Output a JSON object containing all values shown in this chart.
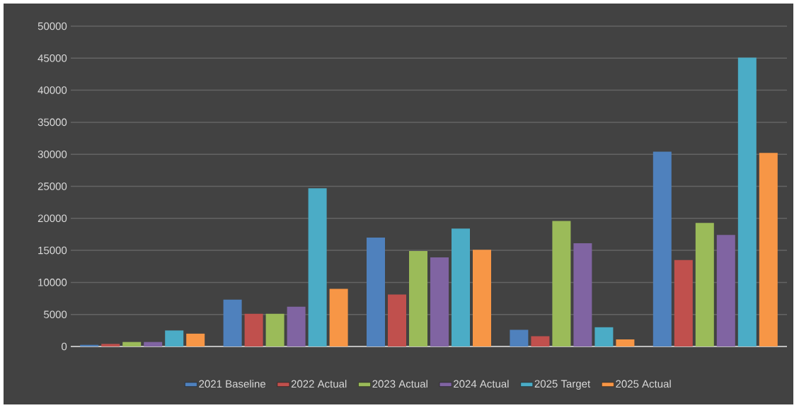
{
  "chart_data": {
    "type": "bar",
    "categories": [
      null,
      null,
      null,
      null,
      null
    ],
    "series": [
      {
        "name": "2021 Baseline",
        "color": "#4f81bd",
        "values": [
          250,
          7300,
          17000,
          2600,
          30400
        ]
      },
      {
        "name": "2022 Actual",
        "color": "#c0504d",
        "values": [
          400,
          5100,
          8100,
          1600,
          13500
        ]
      },
      {
        "name": "2023 Actual",
        "color": "#9bbb59",
        "values": [
          700,
          5100,
          14900,
          19600,
          19300
        ]
      },
      {
        "name": "2024 Actual",
        "color": "#8064a2",
        "values": [
          700,
          6200,
          13900,
          16100,
          17400
        ]
      },
      {
        "name": "2025 Target",
        "color": "#4bacc6",
        "values": [
          2500,
          24700,
          18400,
          3000,
          45100
        ]
      },
      {
        "name": "2025 Actual",
        "color": "#f79646",
        "values": [
          2000,
          9000,
          15100,
          1100,
          30200
        ]
      }
    ],
    "ylim": [
      0,
      50000
    ],
    "yticks": [
      0,
      5000,
      10000,
      15000,
      20000,
      25000,
      30000,
      35000,
      40000,
      45000,
      50000
    ],
    "grid": "y",
    "legend": "bottom"
  }
}
